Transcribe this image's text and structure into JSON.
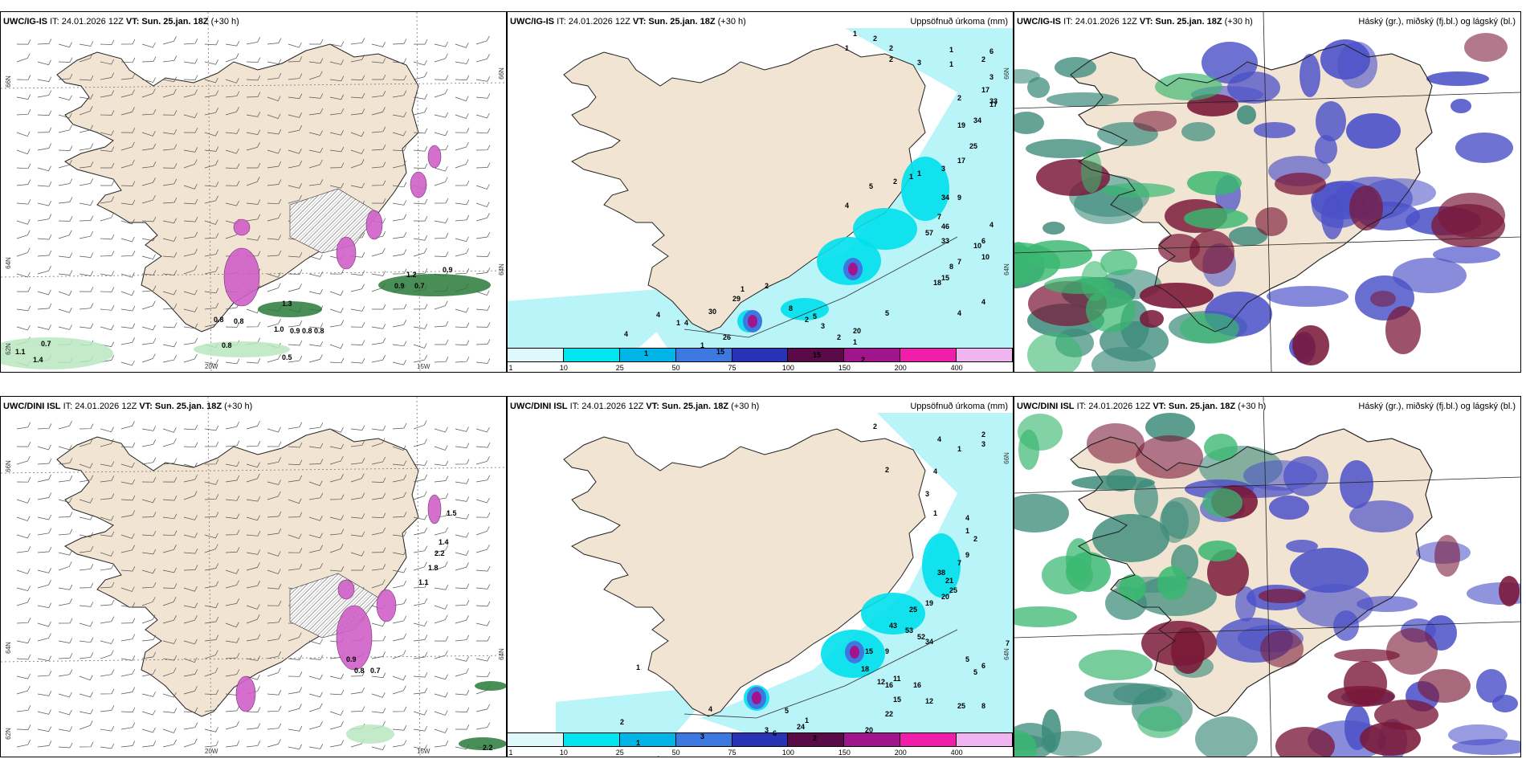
{
  "panels": [
    {
      "id": "tl",
      "model": "UWC/IG-IS",
      "it": "IT: 24.01.2026 12Z",
      "vt_label": "VT:",
      "vt": "Sun. 25.jan. 18Z",
      "lead": "(+30 h)",
      "right_title": ""
    },
    {
      "id": "tm",
      "model": "UWC/IG-IS",
      "it": "IT: 24.01.2026 12Z",
      "vt_label": "VT:",
      "vt": "Sun. 25.jan. 18Z",
      "lead": "(+30 h)",
      "right_title": "Uppsöfnuð úrkoma (mm)"
    },
    {
      "id": "tr",
      "model": "UWC/IG-IS",
      "it": "IT: 24.01.2026 12Z",
      "vt_label": "VT:",
      "vt": "Sun. 25.jan. 18Z",
      "lead": "(+30 h)",
      "right_title": "Háský (gr.), miðský (fj.bl.) og lágský (bl.)"
    },
    {
      "id": "bl",
      "model": "UWC/DINI ISL",
      "it": "IT: 24.01.2026 12Z",
      "vt_label": "VT:",
      "vt": "Sun. 25.jan. 18Z",
      "lead": "(+30 h)",
      "right_title": ""
    },
    {
      "id": "bm",
      "model": "UWC/DINI ISL",
      "it": "IT: 24.01.2026 12Z",
      "vt_label": "VT:",
      "vt": "Sun. 25.jan. 18Z",
      "lead": "(+30 h)",
      "right_title": "Uppsöfnuð úrkoma (mm)"
    },
    {
      "id": "br",
      "model": "UWC/DINI ISL",
      "it": "IT: 24.01.2026 12Z",
      "vt_label": "VT:",
      "vt": "Sun. 25.jan. 18Z",
      "lead": "(+30 h)",
      "right_title": "Háský (gr.), miðský (fj.bl.) og lágský (bl.)"
    }
  ],
  "axis_labels": {
    "lat66": "66N",
    "lat64": "64N",
    "lat62": "62N",
    "lon20": "20W",
    "lon15": "15W"
  },
  "colorbar": {
    "ticks": [
      "1",
      "10",
      "25",
      "50",
      "75",
      "100",
      "150",
      "200",
      "400"
    ],
    "colors": [
      "#dff8fb",
      "#00e5f0",
      "#00b4e6",
      "#3c78e0",
      "#2832b4",
      "#5a0a46",
      "#a0148c",
      "#f01eaa",
      "#f0b4f0"
    ]
  },
  "precip_top_labels": [
    "1",
    "2",
    "1",
    "2",
    "1",
    "6",
    "2",
    "3",
    "1",
    "2",
    "3",
    "17",
    "2",
    "33",
    "17",
    "34",
    "19",
    "25",
    "17",
    "3",
    "1",
    "2",
    "5",
    "4",
    "1",
    "34",
    "9",
    "7",
    "46",
    "57",
    "33",
    "4",
    "6",
    "10",
    "10",
    "7",
    "8",
    "15",
    "18",
    "4",
    "4",
    "5",
    "2",
    "3",
    "20",
    "15",
    "15",
    "26",
    "30",
    "29",
    "2",
    "1",
    "4",
    "4",
    "4",
    "1",
    "8",
    "5",
    "2",
    "1",
    "2",
    "1",
    "1"
  ],
  "precip_bottom_labels": [
    "2",
    "4",
    "2",
    "3",
    "1",
    "2",
    "4",
    "3",
    "1",
    "4",
    "1",
    "2",
    "9",
    "7",
    "38",
    "21",
    "25",
    "20",
    "19",
    "25",
    "43",
    "53",
    "52",
    "34",
    "9",
    "15",
    "18",
    "12",
    "11",
    "5",
    "6",
    "7",
    "5",
    "8",
    "25",
    "16",
    "16",
    "15",
    "12",
    "22",
    "20",
    "24",
    "2",
    "3",
    "6",
    "1",
    "5",
    "4",
    "3",
    "1",
    "1",
    "2",
    "1"
  ],
  "wind_top_labels": [
    "0.9",
    "1.2",
    "0.9",
    "0.7",
    "1.3",
    "0.8",
    "0.8",
    "1.0",
    "0.9",
    "0.8",
    "0.8",
    "0.7",
    "1.1",
    "1.4",
    "0.8",
    "0.5"
  ],
  "wind_bottom_labels": [
    "1.5",
    "1.4",
    "2.2",
    "1.8",
    "1.1",
    "0.9",
    "0.8",
    "0.7",
    "2.2"
  ],
  "colors": {
    "land": "#f2e4d2",
    "pink": "#d060c8",
    "darkgreen": "#2a7a3a",
    "lightgreen": "#b8e8c0",
    "cyanlight": "#b8f4f8",
    "cyan": "#00e0ec",
    "blue": "#4a50c8",
    "maroon": "#7a1838",
    "teal": "#3a8a7a"
  }
}
